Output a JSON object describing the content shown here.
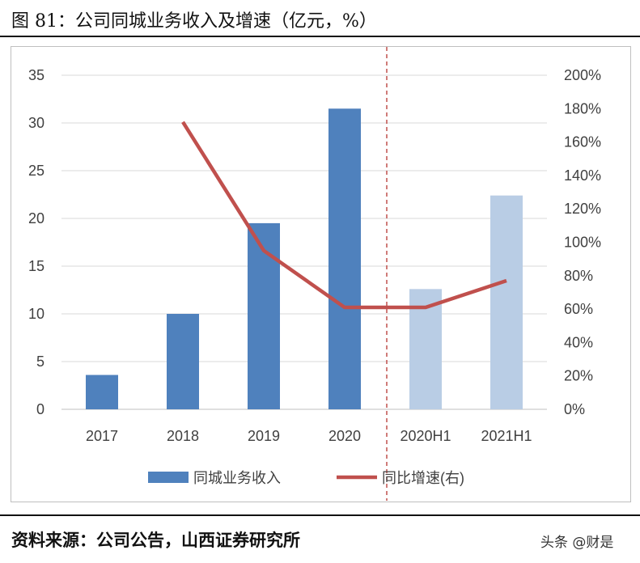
{
  "title": "图 81：公司同城业务收入及增速（亿元，%）",
  "footer": "资料来源：公司公告，山西证券研究所",
  "watermark": "头条 @财是",
  "chart_data": {
    "type": "bar",
    "categories": [
      "2017",
      "2018",
      "2019",
      "2020",
      "2020H1",
      "2021H1"
    ],
    "series": [
      {
        "name": "同城业务收入",
        "type": "bar",
        "axis": "left",
        "values": [
          3.6,
          10.0,
          19.5,
          31.5,
          12.6,
          22.4
        ],
        "colors": [
          "#4f81bd",
          "#4f81bd",
          "#4f81bd",
          "#4f81bd",
          "#b9cde5",
          "#b9cde5"
        ]
      },
      {
        "name": "同比增速(右)",
        "type": "line",
        "axis": "right",
        "values": [
          null,
          172,
          95,
          61,
          61,
          77
        ],
        "color": "#c0504d"
      }
    ],
    "ylim": [
      0,
      35
    ],
    "yticks": [
      "0",
      "5",
      "10",
      "15",
      "20",
      "25",
      "30",
      "35"
    ],
    "y2lim": [
      0,
      200
    ],
    "y2ticks": [
      "0%",
      "20%",
      "40%",
      "60%",
      "80%",
      "100%",
      "120%",
      "140%",
      "160%",
      "180%",
      "200%"
    ],
    "grid": true,
    "legend": "bottom",
    "divider_after": "2020",
    "divider_color": "#c0504d"
  }
}
